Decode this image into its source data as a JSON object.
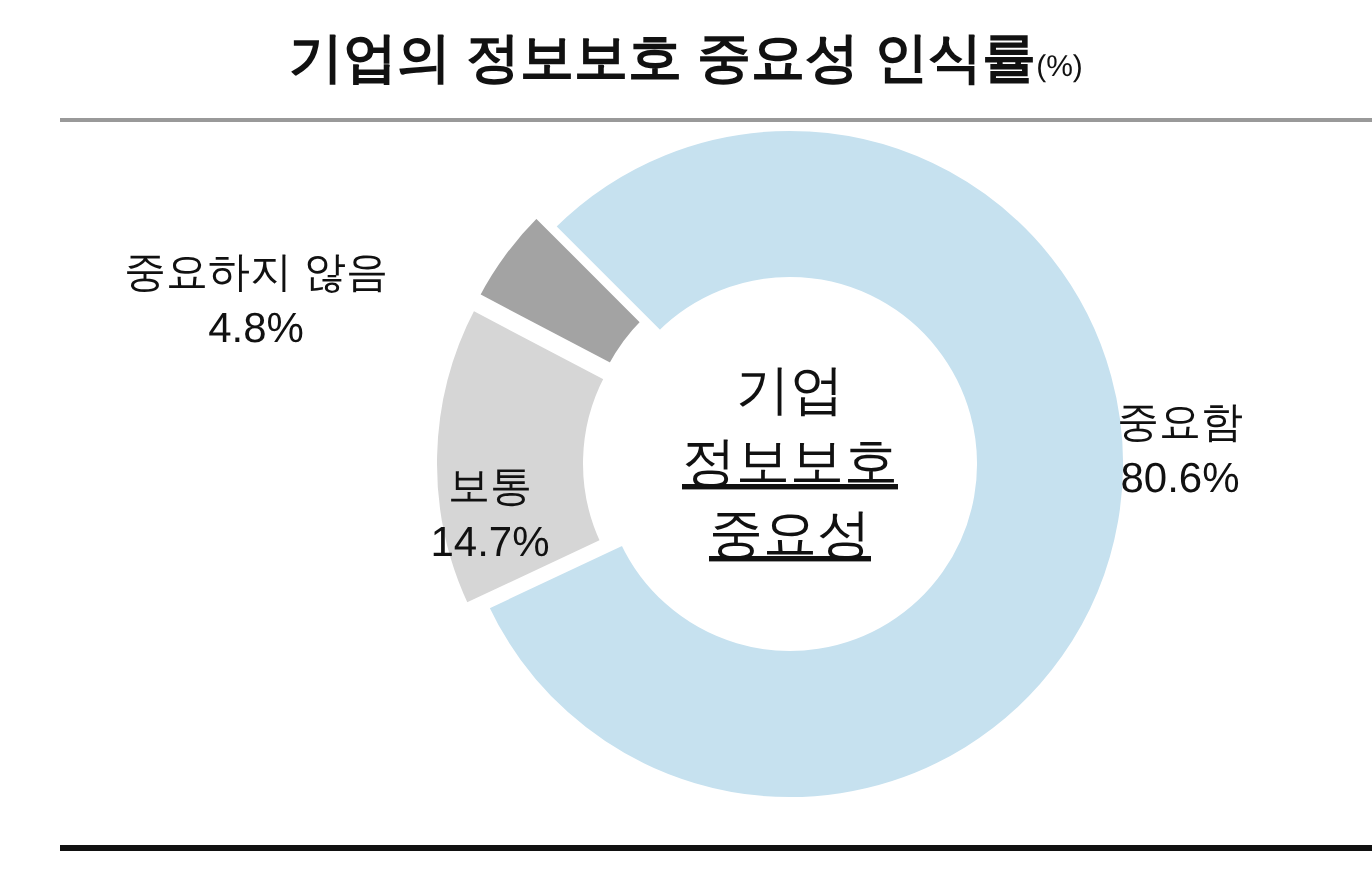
{
  "chart_data": {
    "type": "donut",
    "title": "기업의 정보보호 중요성 인식률",
    "subtitle": "(%)",
    "categories": [
      "중요함",
      "보통",
      "중요하지 않음"
    ],
    "values": [
      80.6,
      14.7,
      4.8
    ],
    "colors": [
      "#c6e1ef",
      "#d6d6d6",
      "#a3a3a3"
    ],
    "value_labels": [
      "80.6%",
      "14.7%",
      "4.8%"
    ],
    "annotations": [
      "기업",
      "정보보호",
      "중요성"
    ]
  }
}
